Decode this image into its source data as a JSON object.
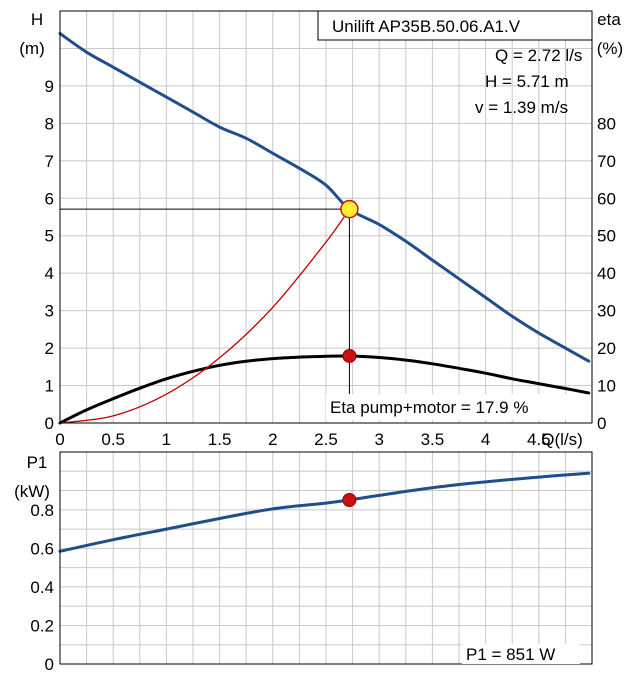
{
  "chart_data": [
    {
      "type": "line",
      "title": "Unilift AP35B.50.06.A1.V",
      "ylabel": "H",
      "ylabel_unit": "(m)",
      "y2label": "eta",
      "y2label_unit": "(%)",
      "xlabel": "Q(l/s)",
      "xlim": [
        0,
        5.0
      ],
      "ylim": [
        0,
        11.0
      ],
      "y2lim": [
        0,
        110
      ],
      "grid": true,
      "x_ticks": [
        "0",
        "0.5",
        "1",
        "1.5",
        "2",
        "2.5",
        "3",
        "3.5",
        "4",
        "4.5"
      ],
      "y_ticks": [
        "0",
        "1",
        "2",
        "3",
        "4",
        "5",
        "6",
        "7",
        "8",
        "9"
      ],
      "y2_ticks": [
        "0",
        "10",
        "20",
        "30",
        "40",
        "50",
        "60",
        "70",
        "80"
      ],
      "operating_point": {
        "q_label": "Q = 2.72 l/s",
        "h_label": "H = 5.71 m",
        "v_label": "v = 1.39 m/s",
        "eta_label": "Eta pump+motor = 17.9 %",
        "q": 2.72,
        "h": 5.71,
        "eta": 17.9
      },
      "series": [
        {
          "role": "head",
          "color": "#1f4e8c",
          "x": [
            0,
            0.25,
            0.5,
            0.75,
            1.0,
            1.25,
            1.5,
            1.75,
            2.0,
            2.25,
            2.5,
            2.72,
            3.0,
            3.25,
            3.5,
            3.75,
            4.0,
            4.25,
            4.5,
            4.75,
            4.97
          ],
          "y": [
            10.4,
            9.9,
            9.5,
            9.1,
            8.7,
            8.3,
            7.9,
            7.6,
            7.2,
            6.8,
            6.35,
            5.71,
            5.3,
            4.85,
            4.35,
            3.85,
            3.35,
            2.85,
            2.4,
            2.0,
            1.65
          ]
        },
        {
          "role": "efficiency",
          "color": "#000000",
          "x": [
            0,
            0.25,
            0.5,
            0.75,
            1.0,
            1.25,
            1.5,
            1.75,
            2.0,
            2.25,
            2.5,
            2.72,
            3.0,
            3.25,
            3.5,
            3.75,
            4.0,
            4.25,
            4.5,
            4.75,
            4.97
          ],
          "y": [
            0,
            3.5,
            6.5,
            9.3,
            11.8,
            13.8,
            15.4,
            16.5,
            17.2,
            17.6,
            17.8,
            17.9,
            17.5,
            16.8,
            15.8,
            14.6,
            13.3,
            11.8,
            10.5,
            9.2,
            8.0
          ]
        },
        {
          "role": "system",
          "color": "#c00000",
          "x": [
            0,
            0.5,
            1.0,
            1.5,
            2.0,
            2.5,
            2.72
          ],
          "y": [
            0,
            0.19,
            0.77,
            1.74,
            3.09,
            4.83,
            5.71
          ]
        }
      ]
    },
    {
      "type": "line",
      "ylabel": "P1",
      "ylabel_unit": "(kW)",
      "xlim": [
        0,
        5.0
      ],
      "ylim": [
        0,
        1.1
      ],
      "grid": true,
      "y_ticks": [
        "0",
        "0.2",
        "0.4",
        "0.6",
        "0.8"
      ],
      "operating_point": {
        "p1_label": "P1 = 851 W",
        "q": 2.72,
        "p": 0.851
      },
      "series": [
        {
          "role": "power",
          "color": "#1f4e8c",
          "x": [
            0,
            0.5,
            1.0,
            1.5,
            2.0,
            2.5,
            2.72,
            3.0,
            3.5,
            4.0,
            4.5,
            4.97
          ],
          "y": [
            0.585,
            0.645,
            0.7,
            0.755,
            0.805,
            0.835,
            0.851,
            0.875,
            0.915,
            0.945,
            0.97,
            0.99
          ]
        }
      ]
    }
  ]
}
